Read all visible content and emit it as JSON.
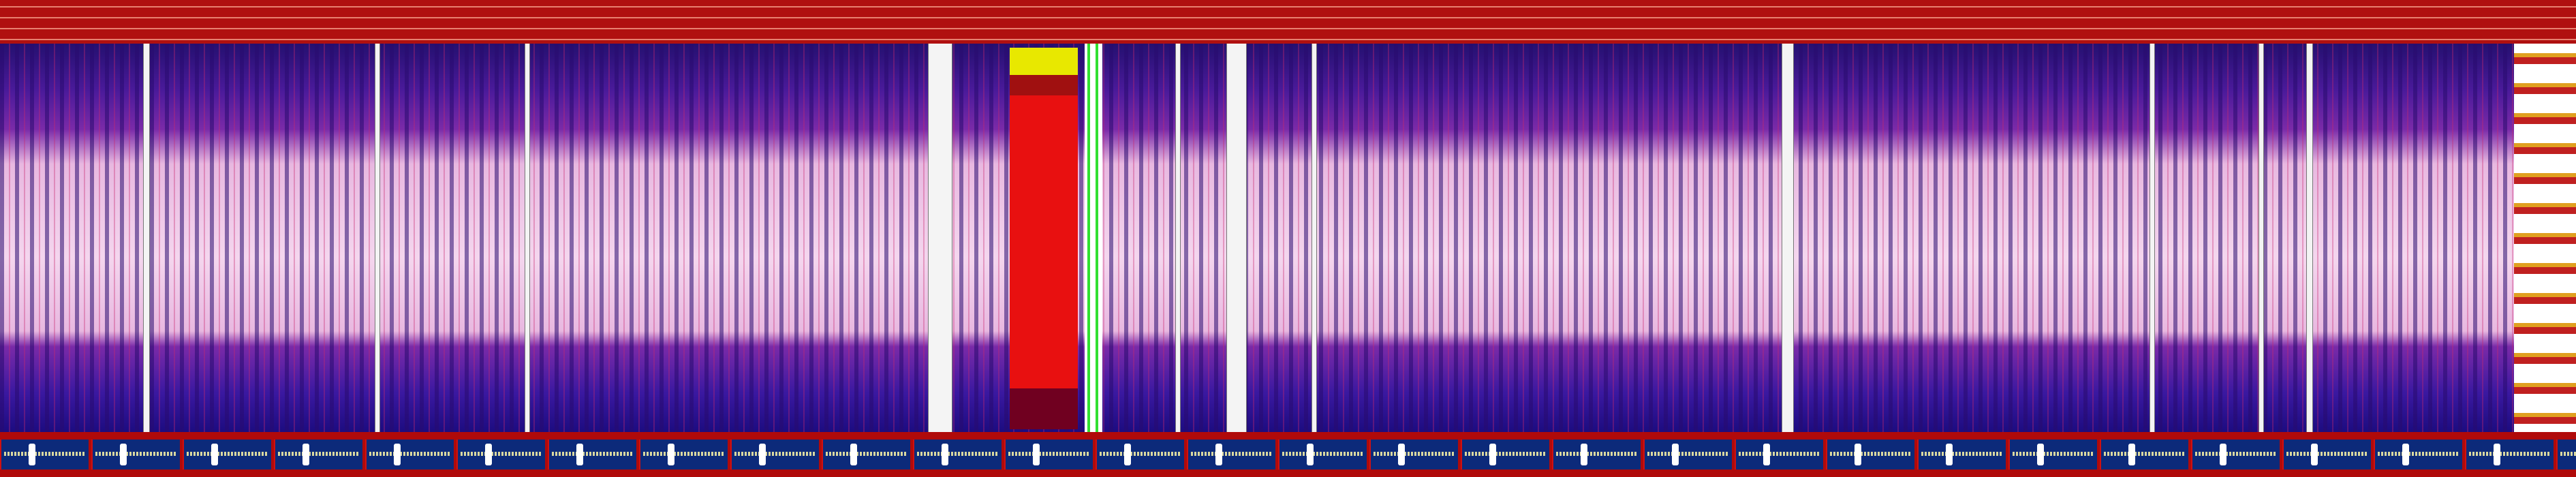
{
  "header": {
    "color": "#b01010"
  },
  "workspace": {
    "colors": {
      "top": "#241070",
      "middle": "#f4d6ee",
      "bottom": "#1c0c80",
      "accent_stripe": "#c82870"
    }
  },
  "panels": {
    "red_panel_color": "#e81010",
    "green_strip_color": "#30e030"
  },
  "taskbar": {
    "color": "#b00a0a",
    "item_color": "#0c2a7a"
  }
}
